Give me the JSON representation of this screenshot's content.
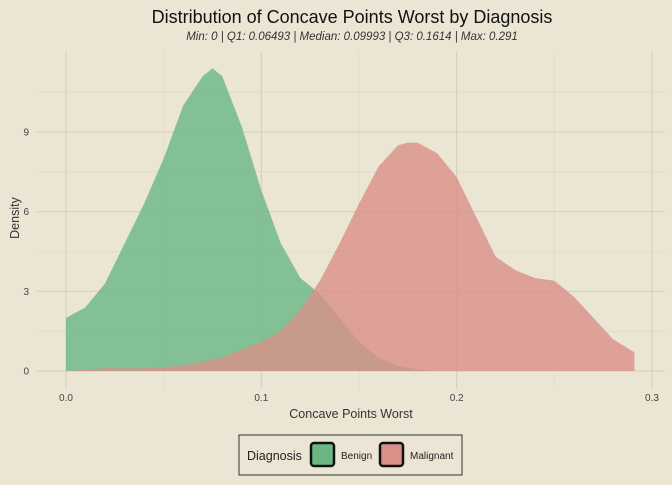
{
  "chart_data": {
    "type": "area",
    "title": "Distribution of Concave Points Worst by Diagnosis",
    "subtitle": "Min: 0 | Q1: 0.06493 | Median: 0.09993 | Q3: 0.1614 | Max: 0.291",
    "xlabel": "Concave Points Worst",
    "ylabel": "Density",
    "xlim": [
      0,
      0.3
    ],
    "ylim": [
      0,
      12
    ],
    "x_ticks": [
      0.0,
      0.1,
      0.2,
      0.3
    ],
    "x_tick_labels": [
      "0.0",
      "0.1",
      "0.2",
      "0.3"
    ],
    "y_ticks": [
      0,
      3,
      6,
      9
    ],
    "y_tick_labels": [
      "0",
      "3",
      "6",
      "9"
    ],
    "grid": true,
    "legend": {
      "title": "Diagnosis",
      "position": "bottom",
      "entries": [
        "Benign",
        "Malignant"
      ]
    },
    "series": [
      {
        "name": "Benign",
        "color": "#6ab784",
        "x": [
          0.0,
          0.01,
          0.02,
          0.03,
          0.04,
          0.05,
          0.06,
          0.07,
          0.075,
          0.08,
          0.09,
          0.1,
          0.11,
          0.12,
          0.13,
          0.14,
          0.15,
          0.16,
          0.17,
          0.18,
          0.19
        ],
        "y": [
          2.0,
          2.4,
          3.3,
          4.8,
          6.3,
          8.0,
          10.0,
          11.1,
          11.4,
          11.1,
          9.2,
          6.8,
          4.8,
          3.5,
          2.9,
          2.0,
          1.1,
          0.5,
          0.2,
          0.05,
          0.0
        ]
      },
      {
        "name": "Malignant",
        "color": "#da9088",
        "x": [
          0.0,
          0.02,
          0.04,
          0.06,
          0.08,
          0.1,
          0.11,
          0.12,
          0.13,
          0.14,
          0.15,
          0.16,
          0.17,
          0.175,
          0.18,
          0.19,
          0.2,
          0.21,
          0.22,
          0.23,
          0.24,
          0.25,
          0.26,
          0.27,
          0.28,
          0.291
        ],
        "y": [
          0.0,
          0.1,
          0.1,
          0.2,
          0.5,
          1.1,
          1.5,
          2.3,
          3.4,
          4.8,
          6.3,
          7.7,
          8.5,
          8.6,
          8.6,
          8.2,
          7.3,
          5.8,
          4.3,
          3.8,
          3.5,
          3.4,
          2.8,
          2.0,
          1.2,
          0.7
        ]
      }
    ]
  }
}
